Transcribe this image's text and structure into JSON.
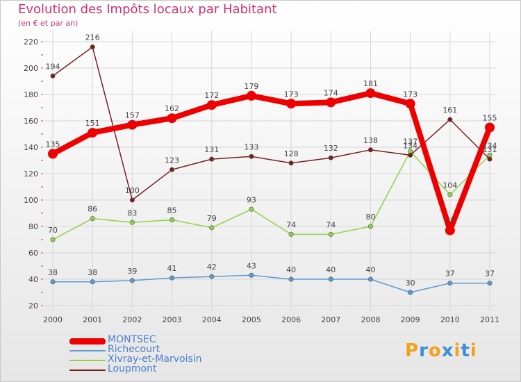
{
  "title": "Evolution des Impôts locaux par Habitant",
  "subtitle": "(en € et par an)",
  "brand": {
    "letters": [
      "P",
      "r",
      "o",
      "x",
      "i",
      "t",
      "i"
    ],
    "colors": [
      "#f4a21c",
      "#3a8fd8",
      "#f4a21c",
      "#3a8fd8",
      "#f4a21c",
      "#3a8fd8",
      "#f4a21c"
    ]
  },
  "chart_data": {
    "type": "line",
    "x": [
      "2000",
      "2001",
      "2002",
      "2003",
      "2004",
      "2005",
      "2006",
      "2007",
      "2008",
      "2009",
      "2010",
      "2011"
    ],
    "y_ticks": [
      "20",
      "40",
      "60",
      "80",
      "100",
      "120",
      "140",
      "160",
      "180",
      "200",
      "220"
    ],
    "ylim": [
      20,
      220
    ],
    "grid": true,
    "series": [
      {
        "name": "MONTSEC",
        "color": "#ee0000",
        "emphasis": true,
        "values": [
          135,
          151,
          157,
          162,
          172,
          179,
          173,
          174,
          181,
          173,
          77,
          155
        ],
        "labels": [
          "135",
          "151",
          "157",
          "162",
          "172",
          "179",
          "173",
          "174",
          "181",
          "173",
          "77",
          "155"
        ]
      },
      {
        "name": "Richecourt",
        "color": "#5b9bd5",
        "emphasis": false,
        "values": [
          38,
          38,
          39,
          41,
          42,
          43,
          40,
          40,
          40,
          30,
          37,
          37
        ],
        "labels": [
          "38",
          "38",
          "39",
          "41",
          "42",
          "43",
          "40",
          "40",
          "40",
          "30",
          "37",
          "37"
        ]
      },
      {
        "name": "Xivray-et-Marvoisin",
        "color": "#8fd24a",
        "emphasis": false,
        "values": [
          70,
          86,
          83,
          85,
          79,
          93,
          74,
          74,
          80,
          137,
          104,
          134
        ],
        "labels": [
          "70",
          "86",
          "83",
          "85",
          "79",
          "93",
          "74",
          "74",
          "80",
          "137",
          "104",
          "134"
        ]
      },
      {
        "name": "Loupmont",
        "color": "#7a1f1f",
        "emphasis": false,
        "values": [
          194,
          216,
          100,
          123,
          131,
          133,
          128,
          132,
          138,
          134,
          161,
          131
        ],
        "labels": [
          "194",
          "216",
          "100",
          "123",
          "131",
          "133",
          "128",
          "132",
          "138",
          "134",
          "161",
          "131"
        ]
      }
    ]
  }
}
